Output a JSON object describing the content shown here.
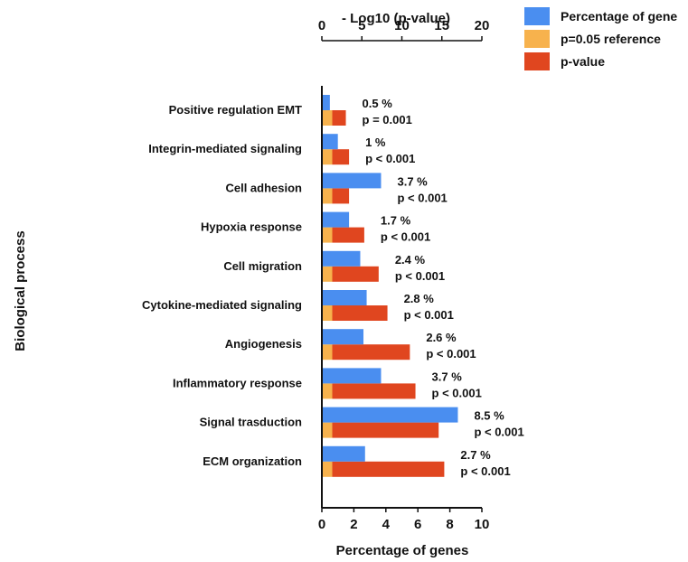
{
  "chart_data": {
    "type": "bar",
    "orientation": "horizontal",
    "title": "",
    "categories": [
      "Positive regulation EMT",
      "Integrin-mediated signaling",
      "Cell adhesion",
      "Hypoxia response",
      "Cell migration",
      "Cytokine-mediated signaling",
      "Angiogenesis",
      "Inflammatory response",
      "Signal trasduction",
      "ECM organization"
    ],
    "ylabel": "Biological process",
    "xlabel_bottom": "Percentage of genes",
    "xlabel_top": "- Log10 (p-value)",
    "xlim_bottom": [
      0,
      10
    ],
    "xlim_top": [
      0,
      20
    ],
    "xticks_bottom": [
      "0",
      "2",
      "4",
      "6",
      "8",
      "10"
    ],
    "xticks_top": [
      "0",
      "5",
      "10",
      "15",
      "20"
    ],
    "grid": false,
    "legend_position": "top-right",
    "series": [
      {
        "name": "Percentage of gene",
        "axis": "bottom",
        "color": "#4a8ef0",
        "values": [
          0.5,
          1,
          3.7,
          1.7,
          2.4,
          2.8,
          2.6,
          3.7,
          8.5,
          2.7
        ]
      },
      {
        "name": "p=0.05 reference",
        "axis": "top",
        "color": "#f7b24d",
        "values": [
          1.3,
          1.3,
          1.3,
          1.3,
          1.3,
          1.3,
          1.3,
          1.3,
          1.3,
          1.3
        ]
      },
      {
        "name": "p-value",
        "axis": "top",
        "color": "#e0461f",
        "values": [
          3,
          3.4,
          3.4,
          5.3,
          7.1,
          8.2,
          11,
          11.7,
          14.6,
          15.3
        ]
      }
    ],
    "annotations": [
      {
        "pct": "0.5 %",
        "p": "p = 0.001"
      },
      {
        "pct": "1 %",
        "p": "p < 0.001"
      },
      {
        "pct": "3.7 %",
        "p": "p < 0.001"
      },
      {
        "pct": "1.7 %",
        "p": "p < 0.001"
      },
      {
        "pct": "2.4 %",
        "p": "p < 0.001"
      },
      {
        "pct": "2.8 %",
        "p": "p < 0.001"
      },
      {
        "pct": "2.6 %",
        "p": "p < 0.001"
      },
      {
        "pct": "3.7 %",
        "p": "p < 0.001"
      },
      {
        "pct": "8.5 %",
        "p": "p < 0.001"
      },
      {
        "pct": "2.7 %",
        "p": "p < 0.001"
      }
    ]
  }
}
